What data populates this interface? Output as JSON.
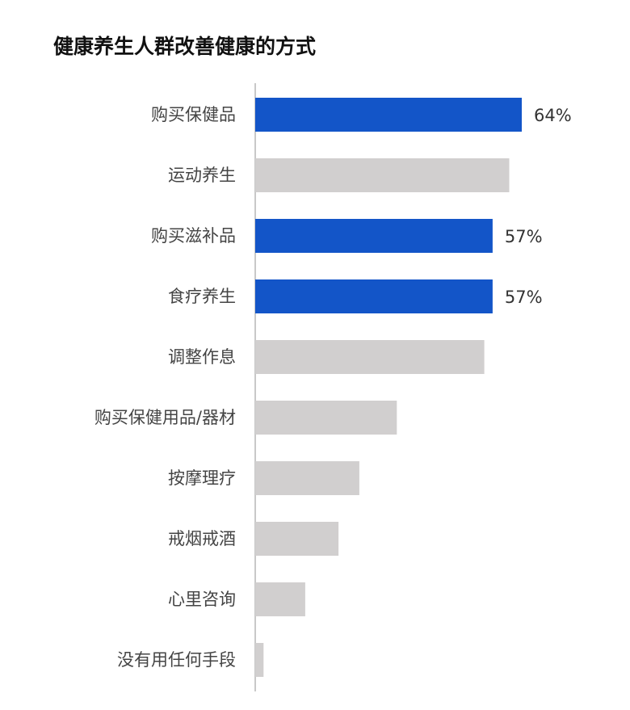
{
  "colors": {
    "highlight": "#1355C8",
    "normal": "#D1CFCF",
    "axis": "#C8C8C8"
  },
  "chart_data": {
    "type": "bar",
    "orientation": "horizontal",
    "title": "健康养生人群改善健康的方式",
    "unit": "%",
    "xlim": [
      0,
      64
    ],
    "grid": false,
    "legend": "none",
    "categories": [
      "购买保健品",
      "运动养生",
      "购买滋补品",
      "食疗养生",
      "调整作息",
      "购买保健用品/器材",
      "按摩理疗",
      "戒烟戒酒",
      "心里咨询",
      "没有用任何手段"
    ],
    "values": [
      64,
      61,
      57,
      57,
      55,
      34,
      25,
      20,
      12,
      2
    ],
    "highlighted": [
      true,
      false,
      true,
      true,
      false,
      false,
      false,
      false,
      false,
      false
    ],
    "data_labels": [
      "64%",
      "",
      "57%",
      "57%",
      "",
      "",
      "",
      "",
      "",
      ""
    ]
  }
}
